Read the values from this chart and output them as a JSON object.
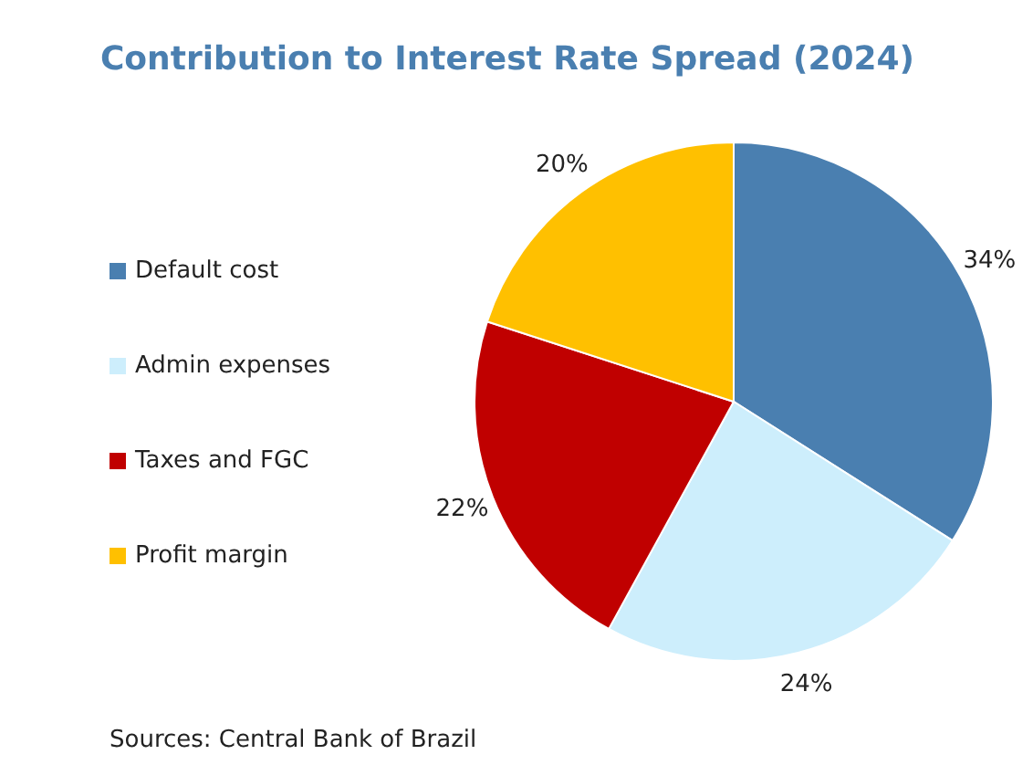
{
  "chart_data": {
    "type": "pie",
    "title": "Contribution to Interest Rate Spread (2024)",
    "categories": [
      "Default cost",
      "Admin expenses",
      "Taxes and FGC",
      "Profit margin"
    ],
    "values": [
      34,
      24,
      22,
      20
    ],
    "value_labels": [
      "34%",
      "24%",
      "22%",
      "20%"
    ],
    "colors": [
      "#4a7fb0",
      "#cdeefc",
      "#c00000",
      "#ffc000"
    ],
    "legend": "left",
    "annotations": [
      "Sources: Central Bank of Brazil"
    ]
  }
}
